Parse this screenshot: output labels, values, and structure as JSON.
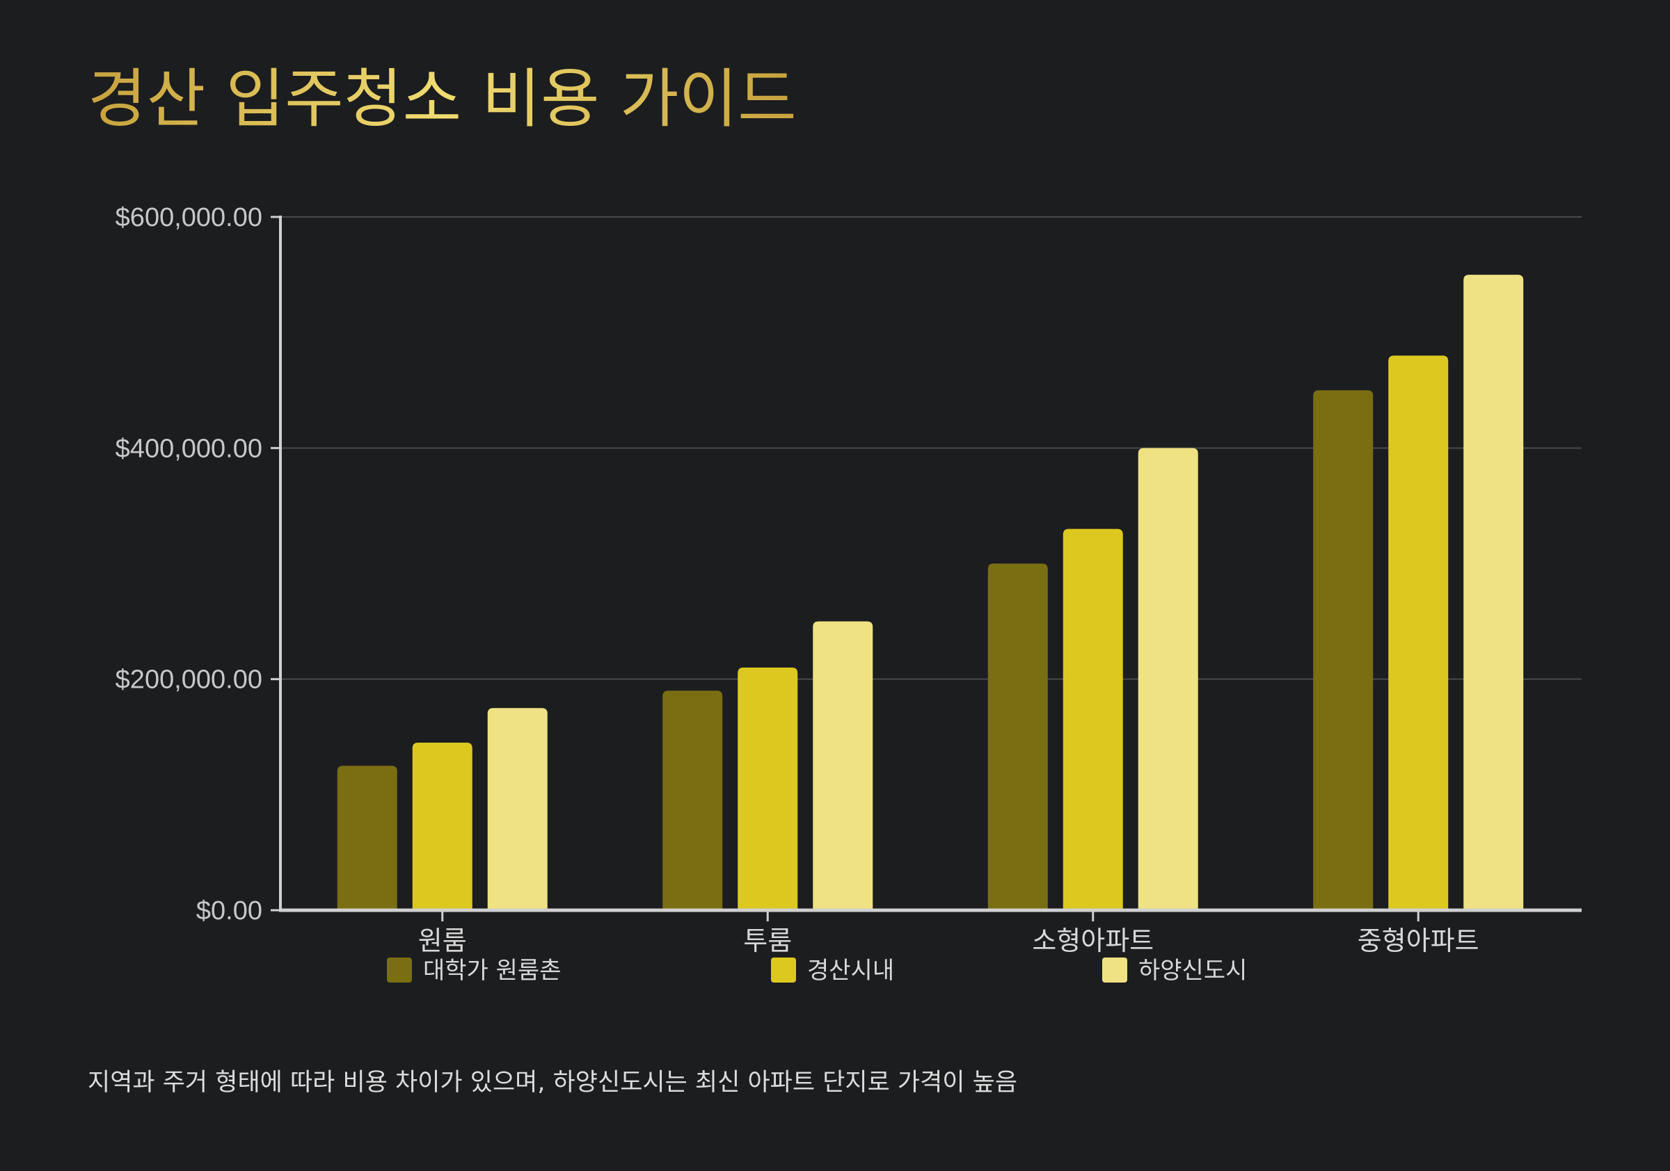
{
  "chart_data": {
    "type": "bar",
    "title": "경산 입주청소 비용 가이드",
    "categories": [
      "원룸",
      "투룸",
      "소형아파트",
      "중형아파트"
    ],
    "series": [
      {
        "name": "대학가 원룸촌",
        "color": "#7a6e12",
        "values": [
          125000,
          190000,
          300000,
          450000
        ]
      },
      {
        "name": "경산시내",
        "color": "#ddc81f",
        "values": [
          145000,
          210000,
          330000,
          480000
        ]
      },
      {
        "name": "하양신도시",
        "color": "#efe283",
        "values": [
          175000,
          250000,
          400000,
          550000
        ]
      }
    ],
    "ylim": [
      0,
      600000
    ],
    "yticks": [
      0,
      200000,
      400000,
      600000
    ],
    "ytick_labels": [
      "$0.00",
      "$200,000.00",
      "$400,000.00",
      "$600,000.00"
    ],
    "xlabel": "",
    "ylabel": "",
    "grid": true,
    "legend_position": "bottom",
    "note": "지역과 주거 형태에 따라 비용 차이가 있으며, 하양신도시는 최신 아파트 단지로 가격이 높음"
  },
  "colors": {
    "background": "#1c1d1f",
    "title_gradient_start": "#c7a23e",
    "title_gradient_end": "#f0dc72",
    "axis": "#d0d0d0",
    "grid": "#4a4a4a"
  }
}
